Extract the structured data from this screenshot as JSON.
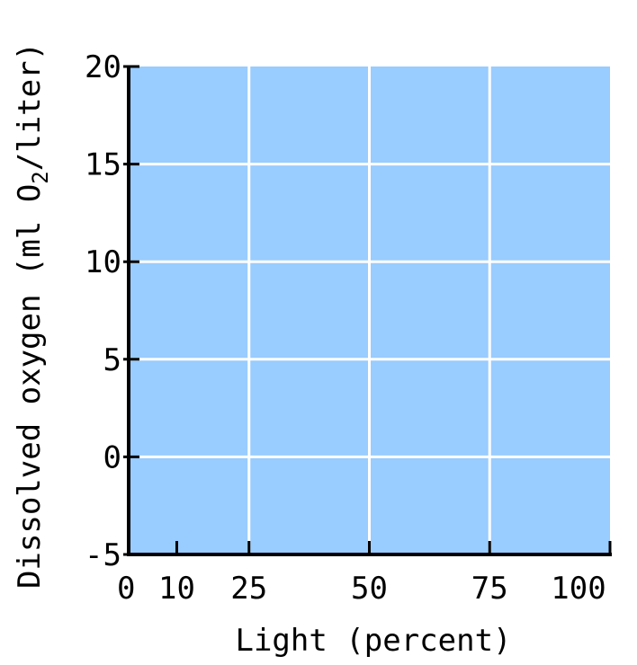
{
  "chart_data": {
    "type": "line",
    "title": "",
    "xlabel": "Light (percent)",
    "ylabel": {
      "before": "Dissolved oxygen (ml O",
      "subscript": "2",
      "after": "/liter)"
    },
    "xlim": [
      0,
      100
    ],
    "ylim": [
      -5,
      20
    ],
    "xticks": [
      0,
      10,
      25,
      50,
      75,
      100
    ],
    "xtick_labels": [
      "0",
      "10",
      "25",
      "50",
      "75",
      "100"
    ],
    "yticks": [
      -5,
      0,
      5,
      10,
      15,
      20
    ],
    "ytick_labels": [
      "-5",
      "0",
      "5",
      "10",
      "15",
      "20"
    ],
    "x_gridlines": [
      25,
      50,
      75
    ],
    "y_gridlines": [
      0,
      5,
      10,
      15
    ],
    "grid": true,
    "series": [],
    "colors": {
      "plot_background": "#99ccff",
      "gridline": "#ffffff",
      "axis": "#000000"
    }
  }
}
